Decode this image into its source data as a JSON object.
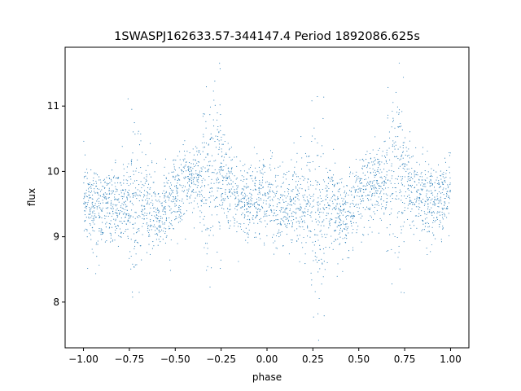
{
  "chart_data": {
    "type": "scatter",
    "title": "1SWASPJ162633.57-344147.4 Period 1892086.625s",
    "xlabel": "phase",
    "ylabel": "flux",
    "xlim": [
      -1.1,
      1.1
    ],
    "ylim": [
      7.3,
      11.9
    ],
    "xticks": [
      -1.0,
      -0.75,
      -0.5,
      -0.25,
      0.0,
      0.25,
      0.5,
      0.75,
      1.0
    ],
    "xtick_labels": [
      "−1.00",
      "−0.75",
      "−0.50",
      "−0.25",
      "0.00",
      "0.25",
      "0.50",
      "0.75",
      "1.00"
    ],
    "yticks": [
      8,
      9,
      10,
      11
    ],
    "ytick_labels": [
      "8",
      "9",
      "10",
      "11"
    ],
    "grid": false,
    "point_color": "#1f77b4",
    "series": [
      {
        "description_values": "phase-folded light curve repeated over two cycles; flux level profile vs phase",
        "profile_x": [
          0.0,
          0.05,
          0.1,
          0.15,
          0.2,
          0.25,
          0.3,
          0.35,
          0.4,
          0.45,
          0.5,
          0.55,
          0.6,
          0.65,
          0.7,
          0.75,
          0.8,
          0.85,
          0.9,
          0.95,
          1.0
        ],
        "profile_y": [
          9.65,
          9.45,
          9.4,
          9.5,
          9.45,
          9.5,
          9.45,
          9.55,
          9.3,
          9.4,
          9.6,
          9.75,
          9.85,
          9.8,
          9.95,
          10.0,
          9.7,
          9.5,
          9.55,
          9.6,
          9.65
        ]
      }
    ]
  }
}
